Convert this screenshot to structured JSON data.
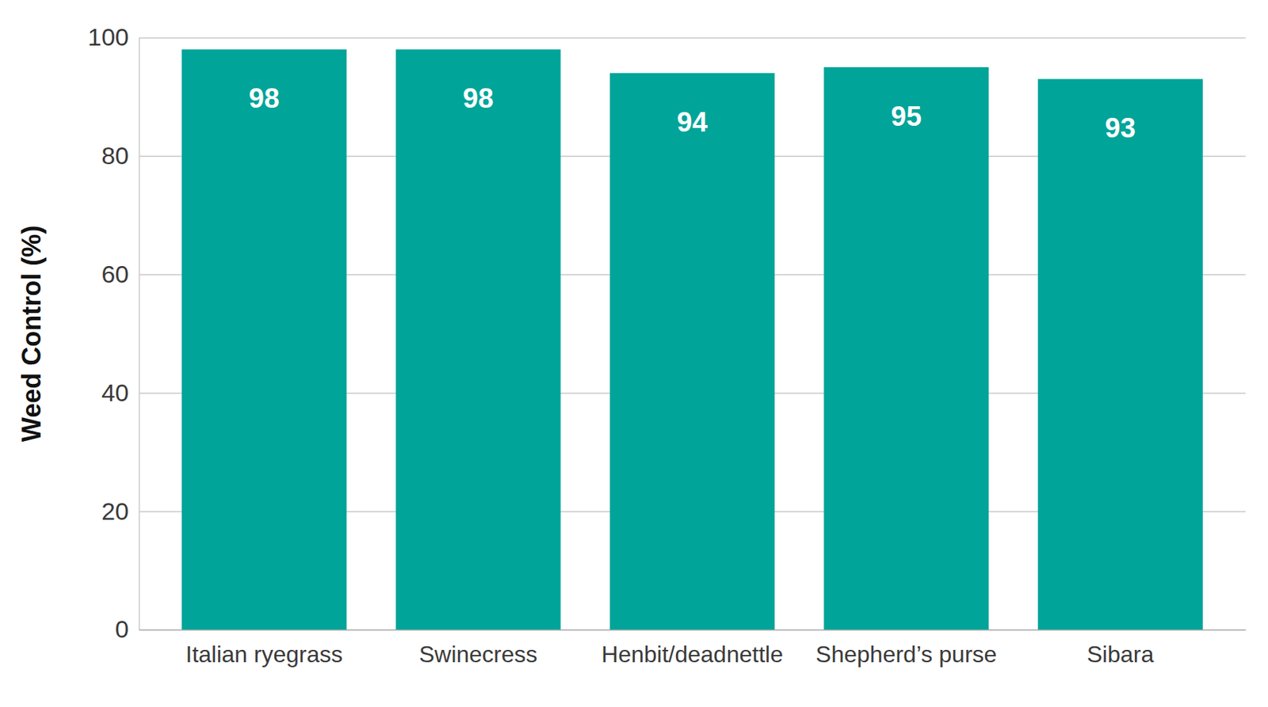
{
  "chart_data": {
    "type": "bar",
    "y_label": "Weed Control (%)",
    "categories": [
      "Italian ryegrass",
      "Swinecress",
      "Henbit/deadnettle",
      "Shepherd’s purse",
      "Sibara"
    ],
    "values": [
      98,
      98,
      94,
      95,
      93
    ],
    "color": "#00a499",
    "ylim": [
      0,
      100
    ],
    "yticks": [
      0,
      20,
      40,
      60,
      80,
      100
    ],
    "grid": true,
    "data_labels": true
  }
}
